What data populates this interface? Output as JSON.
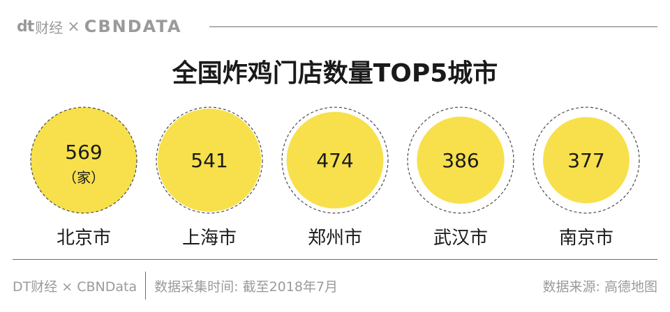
{
  "header": {
    "brand_dt": "dt",
    "brand_cn": "财经",
    "brand_sep": "×",
    "brand_cbn": "CBNDATA"
  },
  "title": "全国炸鸡门店数量TOP5城市",
  "colors": {
    "bubble_fill": "#f7e04b",
    "dash_stroke": "#4a4a4a",
    "text": "#1a1a1a",
    "muted": "#9a9a9a"
  },
  "chart_data": {
    "type": "bubble",
    "title": "全国炸鸡门店数量TOP5城市",
    "unit_label": "（家）",
    "categories": [
      "北京市",
      "上海市",
      "郑州市",
      "武汉市",
      "南京市"
    ],
    "values": [
      569,
      541,
      474,
      386,
      377
    ]
  },
  "footer": {
    "brand": "DT财经 × CBNData",
    "note": "数据采集时间: 截至2018年7月",
    "source": "数据来源: 高德地图"
  }
}
